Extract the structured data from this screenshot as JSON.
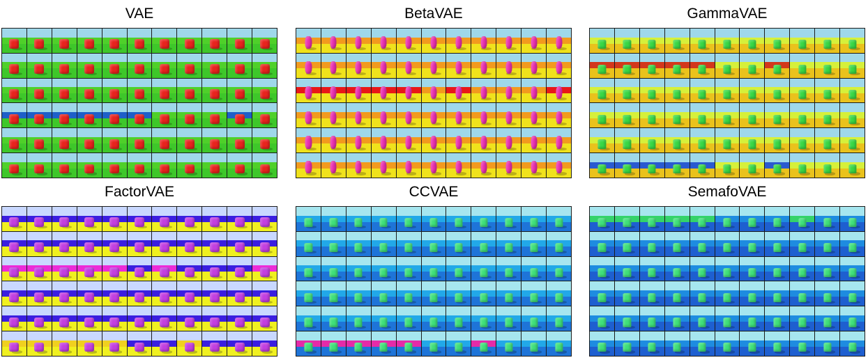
{
  "figure": {
    "panels": [
      {
        "id": "vae",
        "title": "VAE",
        "sky": "#9fd8ea",
        "wall": "#4fd02a",
        "floor": "#3ec72a",
        "object": "#e8231e",
        "shape": "cube",
        "alt_rows": {
          "3": "#1e5fc8"
        }
      },
      {
        "id": "betavae",
        "title": "BetaVAE",
        "sky": "#9fd8ea",
        "wall": "#f29a1e",
        "floor": "#f0e21c",
        "object": "#ea2fb0",
        "shape": "capsule",
        "alt_rows": {
          "0": "#f29a1e",
          "2": "#e81818"
        }
      },
      {
        "id": "gammavae",
        "title": "GammaVAE",
        "sky": "#9fd8ea",
        "wall": "#d6f03a",
        "floor": "#eac21c",
        "object": "#39d845",
        "shape": "cylinder",
        "alt_rows": {
          "1": "#d2381c",
          "5": "#2a5ad0"
        }
      },
      {
        "id": "factorvae",
        "title": "FactorVAE",
        "sky": "#c9d8ff",
        "wall": "#3a1ee0",
        "floor": "#f0f020",
        "object": "#c33fe0",
        "shape": "cube",
        "alt_rows": {
          "2": "#ec2bd8",
          "5": "#f0d020"
        }
      },
      {
        "id": "ccvae",
        "title": "CCVAE",
        "sky": "#a6e6ef",
        "wall": "#22a8e8",
        "floor": "#1e74d8",
        "object": "#3fe07a",
        "shape": "cylinder",
        "alt_rows": {
          "5": "#e52ba8"
        }
      },
      {
        "id": "semafovae",
        "title": "SemafoVAE",
        "sky": "#a6e6ef",
        "wall": "#1e8ce0",
        "floor": "#1e5fd0",
        "object": "#3fe07a",
        "shape": "cylinder",
        "alt_rows": {
          "0": "#34d36a"
        }
      }
    ],
    "grid": {
      "rows": 6,
      "cols": 11
    }
  }
}
